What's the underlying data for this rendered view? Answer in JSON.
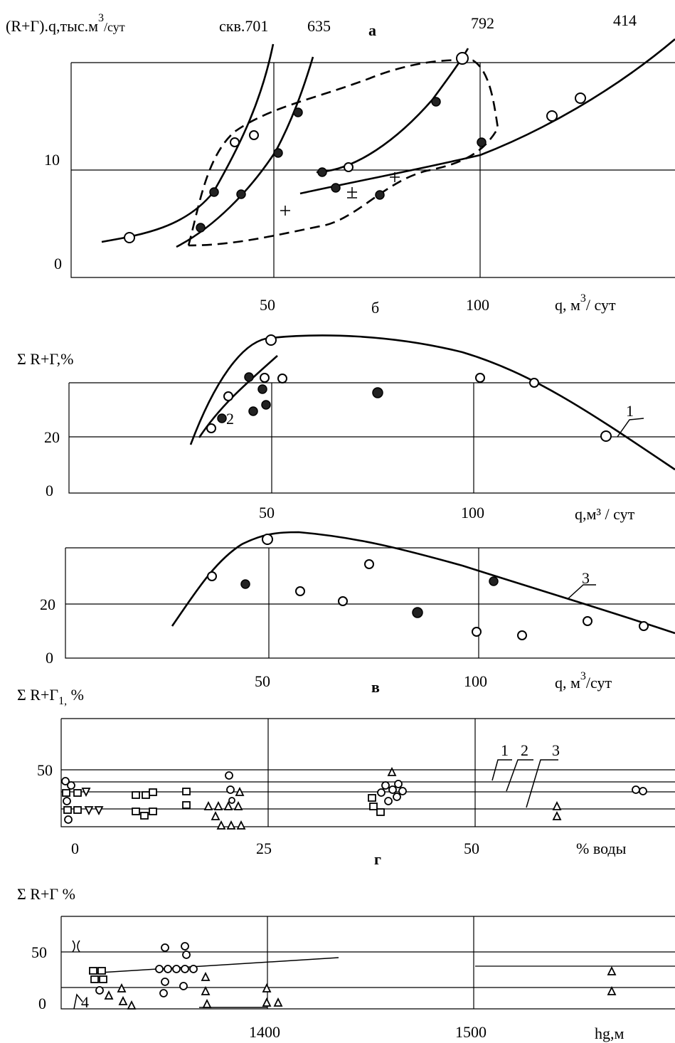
{
  "chart_data": [
    {
      "panel": "а",
      "type": "line",
      "ylabel": "(R+Г).q,тыс.м³/сут",
      "xlabel": "q, м³/ сут",
      "well_labels": [
        "скв.701",
        "635",
        "792",
        "414"
      ],
      "x_ticks": [
        "50",
        "100"
      ],
      "y_ticks": [
        "0",
        "10"
      ],
      "series": [
        {
          "name": "скв.701",
          "points": [
            [
              14,
              3.2
            ],
            [
              32,
              3.9
            ],
            [
              36,
              7.4
            ],
            [
              45,
              11.7
            ],
            [
              50,
              19.6
            ]
          ]
        },
        {
          "name": "635",
          "points": [
            [
              29,
              2.1
            ],
            [
              42,
              7.3
            ],
            [
              53,
              11.0
            ],
            [
              57,
              16.1
            ],
            [
              62,
              20.6
            ]
          ]
        },
        {
          "name": "792",
          "points": [
            [
              62,
              8.7
            ],
            [
              68,
              9.0
            ],
            [
              70,
              7.8
            ],
            [
              74,
              8.9
            ],
            [
              89,
              16.1
            ],
            [
              96,
              20.2
            ]
          ]
        },
        {
          "name": "414",
          "points": [
            [
              68,
              6.8
            ],
            [
              76,
              7.4
            ],
            [
              103,
              12.4
            ],
            [
              121,
              14.9
            ],
            [
              129,
              16.6
            ],
            [
              148,
              22.2
            ]
          ]
        }
      ],
      "markers_plus": [
        [
          53,
          5.2
        ],
        [
          70,
          7.5
        ],
        [
          78,
          9.2
        ]
      ]
    },
    {
      "panel": "б",
      "type": "line",
      "ylabel": "Σ R+Г,%",
      "xlabel": "q,м³ / сут",
      "x_ticks": [
        "50",
        "100"
      ],
      "y_ticks": [
        "0",
        "20"
      ],
      "curve_labels": [
        "1",
        "2"
      ],
      "points": [
        [
          35,
          23
        ],
        [
          37,
          27
        ],
        [
          38,
          33
        ],
        [
          43,
          40
        ],
        [
          44,
          29
        ],
        [
          47,
          37
        ],
        [
          48,
          40
        ],
        [
          48,
          32
        ],
        [
          51,
          55
        ],
        [
          53,
          40
        ],
        [
          75,
          36
        ],
        [
          102,
          40
        ],
        [
          114,
          39
        ],
        [
          130,
          21
        ]
      ]
    },
    {
      "panel": "в",
      "type": "line",
      "xlabel": "q, м³/сут",
      "x_ticks": [
        "50",
        "100"
      ],
      "y_ticks": [
        "0",
        "20"
      ],
      "curve_labels": [
        "3"
      ],
      "points": [
        [
          36,
          31
        ],
        [
          42,
          27
        ],
        [
          51,
          44
        ],
        [
          56,
          24
        ],
        [
          63,
          20
        ],
        [
          75,
          33
        ],
        [
          86,
          17
        ],
        [
          100,
          10
        ],
        [
          106,
          28
        ],
        [
          110,
          9
        ],
        [
          125,
          14
        ],
        [
          139,
          12
        ]
      ]
    },
    {
      "panel": "г",
      "type": "scatter",
      "ylabel": "Σ R+Г₁, %",
      "xlabel": "% воды",
      "x_ticks": [
        "0",
        "25",
        "50"
      ],
      "y_ticks": [
        "50"
      ],
      "curve_labels": [
        "1",
        "2",
        "3"
      ]
    },
    {
      "panel": "",
      "type": "scatter",
      "ylabel": "Σ R+Г %",
      "xlabel": "hg,м",
      "x_ticks": [
        "1400",
        "1500"
      ],
      "y_ticks": [
        "0",
        "50"
      ]
    }
  ],
  "sub_labels": {
    "b": "б",
    "v": "в",
    "g": "г"
  },
  "ui": {
    "ylabel_a": "(R+Г).q,тыс.м",
    "ylabel_a_sup": "3",
    "ylabel_a_tail": "/сут",
    "well_701": "скв.701",
    "well_635": "635",
    "panel_a": "а",
    "well_792": "792",
    "well_414": "414",
    "xlabel_a": "q, м",
    "xlabel_a_sup": "3",
    "xlabel_a_tail": "/ сут",
    "ylabel_b": "Σ R+Г,%",
    "xlabel_b": "q,м³ / сут",
    "xlabel_v": "q, м",
    "xlabel_v_sup": "3",
    "xlabel_v_tail": "/сут",
    "ylabel_g": "Σ R+Г",
    "ylabel_g_sub": "1,",
    "ylabel_g_tail": " %",
    "xlabel_g": "% воды",
    "ylabel_h": "Σ R+Г %",
    "xlabel_h": "hg,м"
  }
}
